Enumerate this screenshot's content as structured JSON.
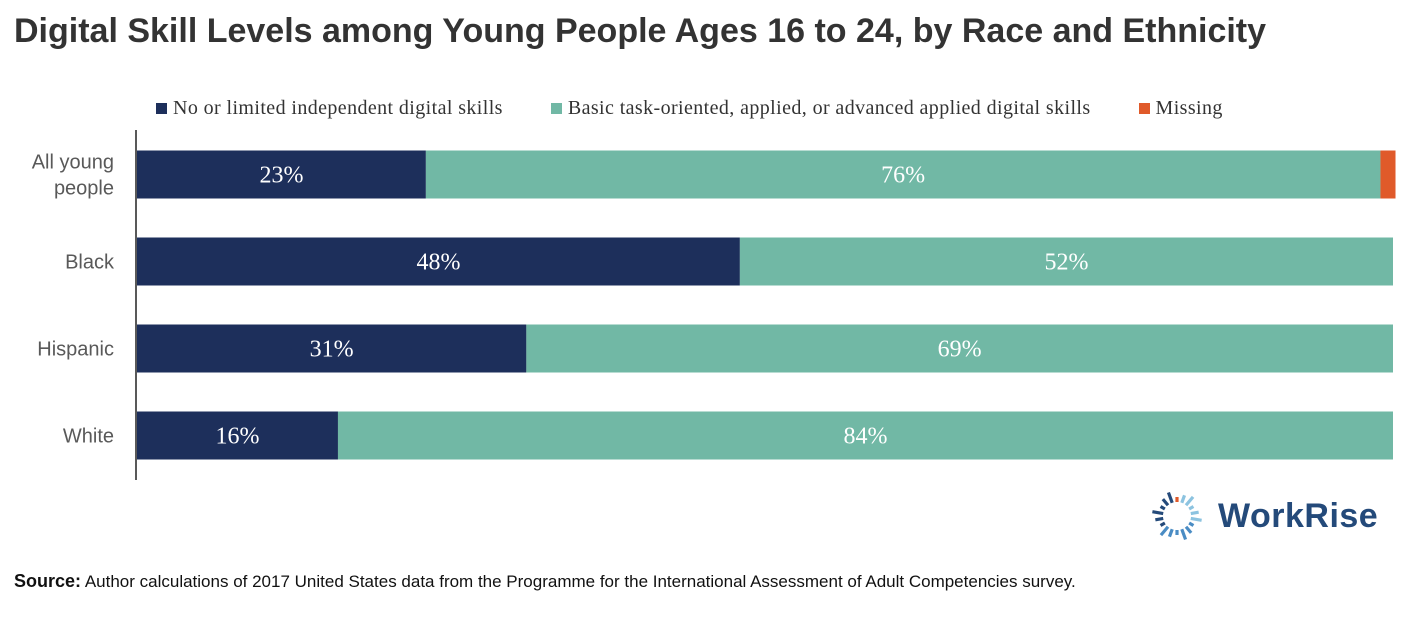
{
  "chart_data": {
    "type": "bar",
    "orientation": "horizontal",
    "stacked": true,
    "title": "Digital Skill Levels among Young People Ages 16 to 24, by Race and Ethnicity",
    "categories": [
      [
        "All young",
        "people"
      ],
      [
        "Black"
      ],
      [
        "Hispanic"
      ],
      [
        "White"
      ]
    ],
    "series": [
      {
        "name": "No or limited independent digital skills",
        "color": "#1d2f5b",
        "values": [
          23,
          48,
          31,
          16
        ],
        "labels": [
          "23%",
          "48%",
          "31%",
          "16%"
        ]
      },
      {
        "name": "Basic task-oriented, applied, or advanced applied digital skills",
        "color": "#71b8a5",
        "values": [
          76,
          52,
          69,
          84
        ],
        "labels": [
          "76%",
          "52%",
          "69%",
          "84%"
        ]
      },
      {
        "name": "Missing",
        "color": "#e05a2a",
        "values": [
          1.2,
          0,
          0,
          0
        ],
        "labels": [
          "",
          "",
          "",
          ""
        ]
      }
    ],
    "xlim": [
      0,
      100
    ],
    "grid": false,
    "legend": "top"
  },
  "source": {
    "label": "Source:",
    "text": "Author calculations of 2017 United States data from the Programme for the International Assessment of Adult Competencies survey."
  },
  "logo": {
    "text": "WorkRise",
    "icon": "workrise-sunburst-icon",
    "colors": [
      "#244a7a",
      "#4a8cc4",
      "#8cc3e0",
      "#e05a2a"
    ]
  }
}
